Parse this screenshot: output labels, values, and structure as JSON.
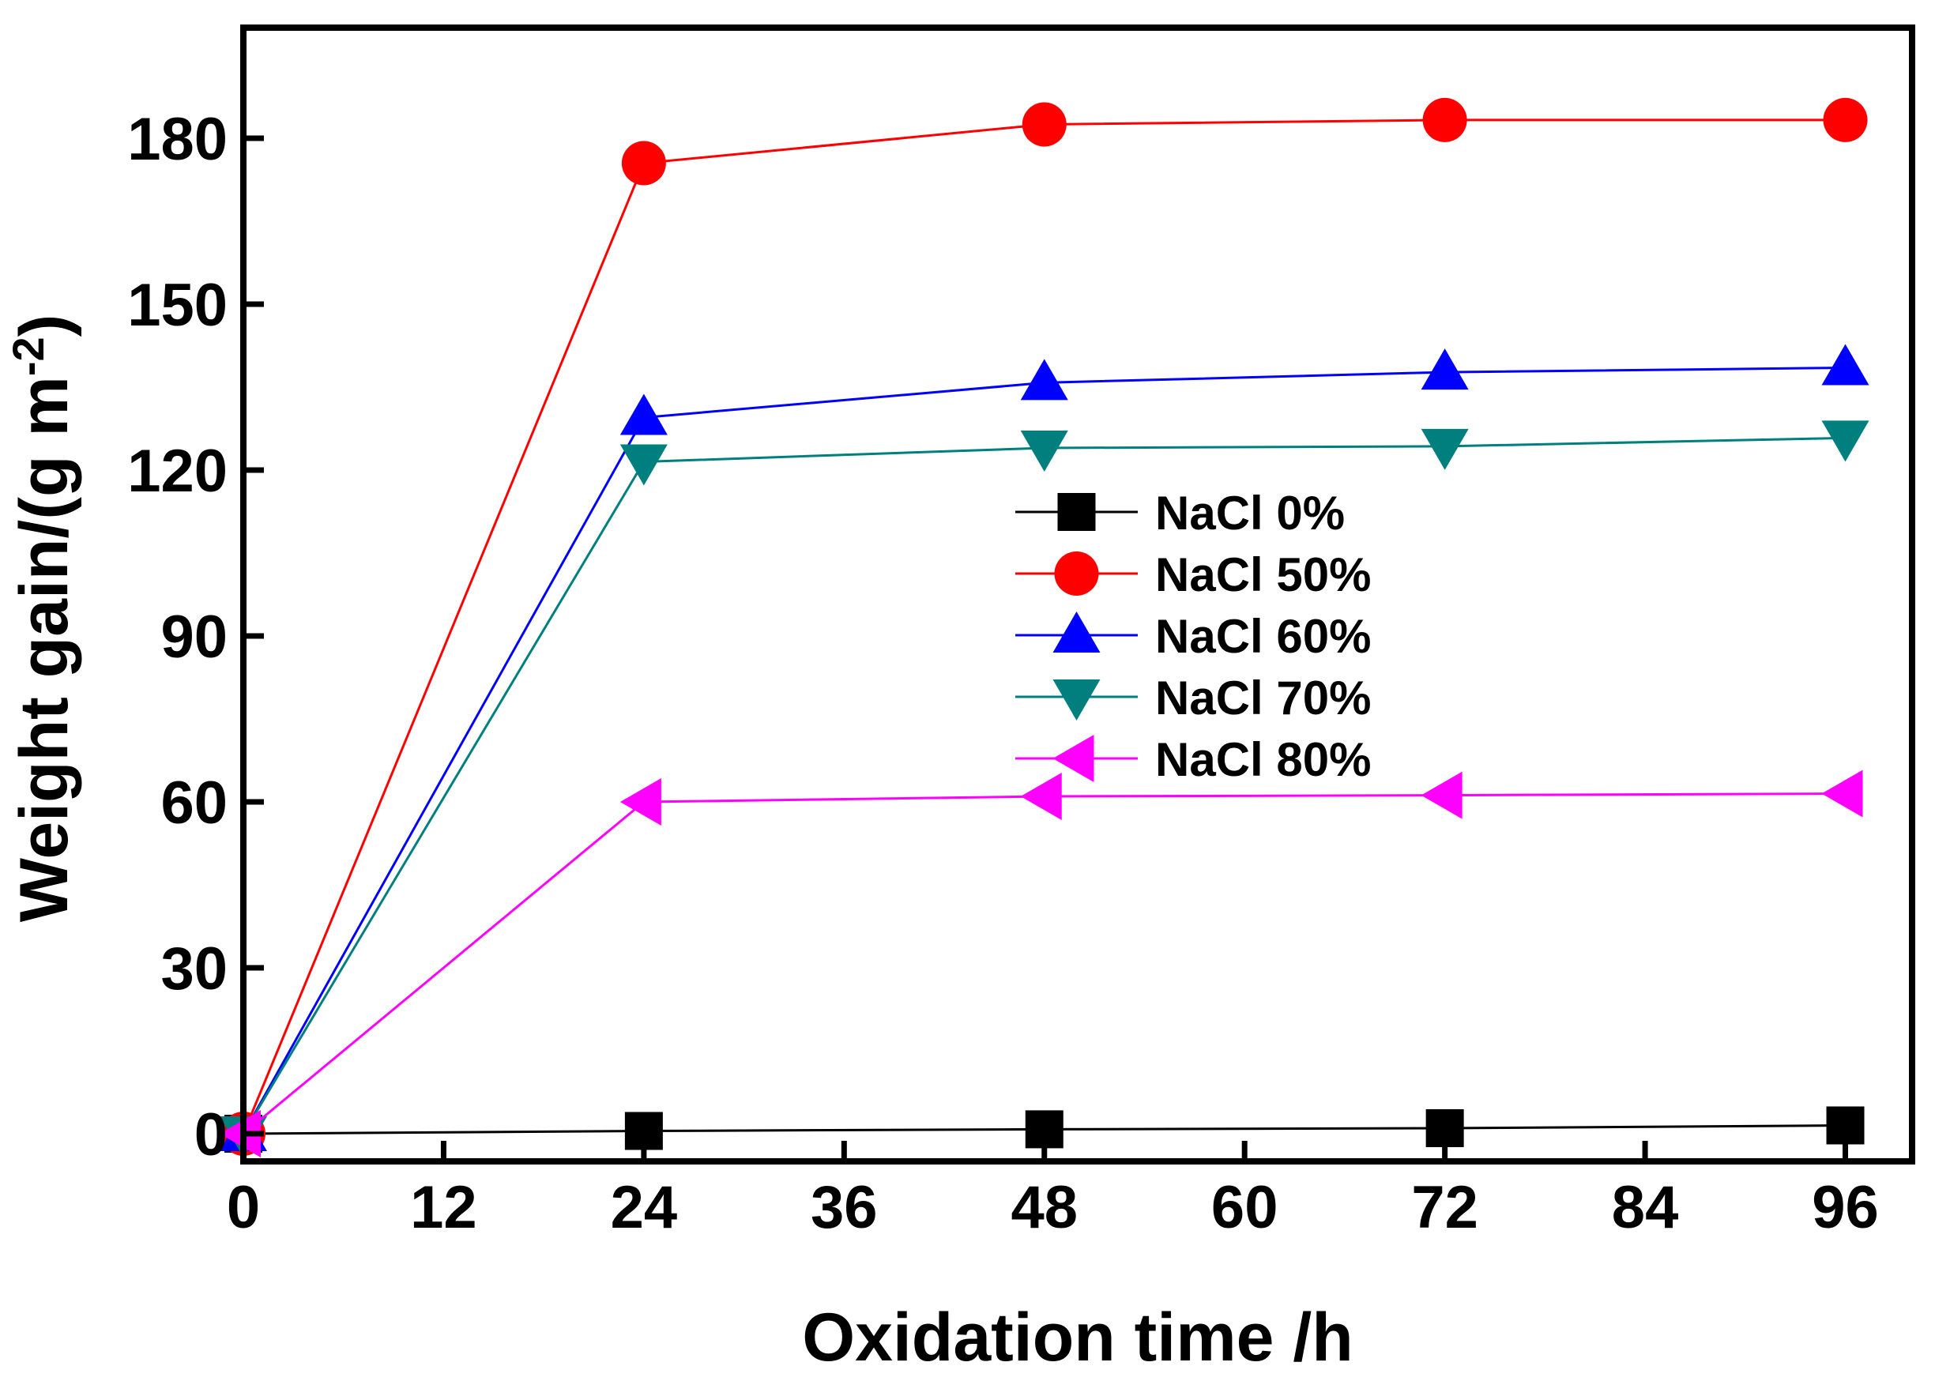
{
  "chart_data": {
    "type": "line",
    "xlabel": "Oxidation time /h",
    "ylabel_main": "Weight gain/(g m",
    "ylabel_sup": "-2",
    "ylabel_close": ")",
    "xlim": [
      0,
      100
    ],
    "ylim": [
      -5,
      200
    ],
    "xticks": [
      0,
      12,
      24,
      36,
      48,
      60,
      72,
      84,
      96
    ],
    "yticks": [
      0,
      30,
      60,
      90,
      120,
      150,
      180
    ],
    "grid": false,
    "legend_position": "center-right",
    "series": [
      {
        "name": "NaCl 0%",
        "color": "#000000",
        "marker": "square",
        "x": [
          0,
          24,
          48,
          72,
          96
        ],
        "y": [
          0,
          0.5,
          0.8,
          1.0,
          1.5
        ]
      },
      {
        "name": "NaCl 50%",
        "color": "#ff0000",
        "marker": "circle",
        "x": [
          0,
          24,
          48,
          72,
          96
        ],
        "y": [
          0,
          175.5,
          182.5,
          183.3,
          183.3
        ]
      },
      {
        "name": "NaCl 60%",
        "color": "#0000ff",
        "marker": "triangle-up",
        "x": [
          0,
          24,
          48,
          72,
          96
        ],
        "y": [
          0,
          129.5,
          135.8,
          137.7,
          138.5
        ]
      },
      {
        "name": "NaCl 70%",
        "color": "#007f7f",
        "marker": "triangle-down",
        "x": [
          0,
          24,
          48,
          72,
          96
        ],
        "y": [
          0,
          121.5,
          124.0,
          124.3,
          125.8
        ]
      },
      {
        "name": "NaCl 80%",
        "color": "#ff00ff",
        "marker": "triangle-left",
        "x": [
          0,
          24,
          48,
          72,
          96
        ],
        "y": [
          0,
          60.0,
          61.0,
          61.2,
          61.5
        ]
      }
    ]
  }
}
